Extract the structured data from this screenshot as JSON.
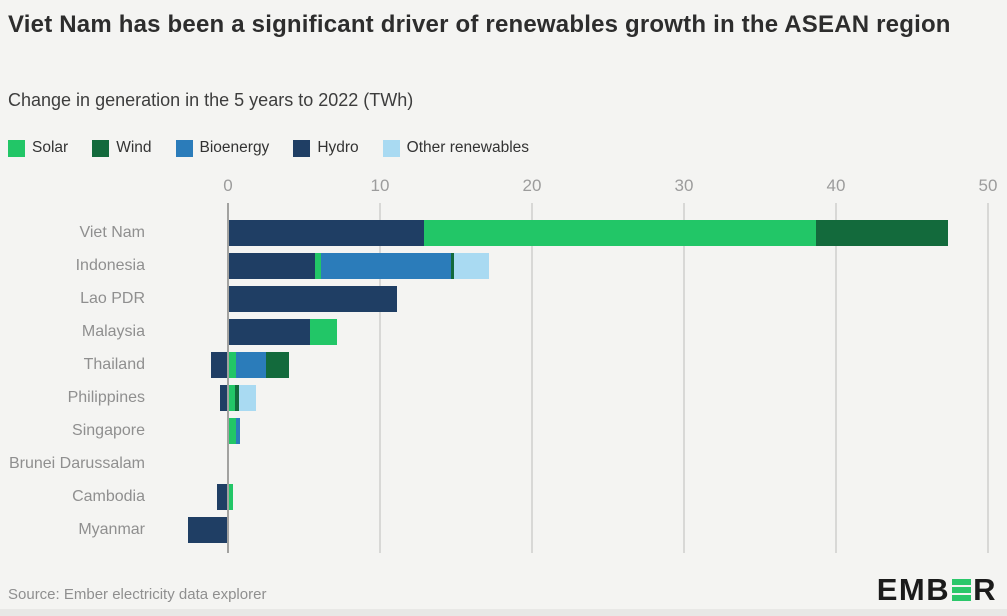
{
  "header": {
    "title": "Viet Nam has been a significant driver of renewables growth in the ASEAN region",
    "subtitle": "Change in generation in the 5 years to 2022 (TWh)"
  },
  "legend": [
    {
      "label": "Solar",
      "color": "#22c667"
    },
    {
      "label": "Wind",
      "color": "#136a3c"
    },
    {
      "label": "Bioenergy",
      "color": "#2b7cba"
    },
    {
      "label": "Hydro",
      "color": "#1f3e64"
    },
    {
      "label": "Other renewables",
      "color": "#a9daf2"
    }
  ],
  "footer": {
    "source": "Source: Ember electricity data explorer",
    "logo_text": "EMBER",
    "logo_color": "#1b1b1b",
    "logo_accent": "#2bc76a"
  },
  "chart_data": {
    "type": "bar",
    "orientation": "horizontal",
    "title": "Viet Nam has been a significant driver of renewables growth in the ASEAN region",
    "subtitle": "Change in generation in the 5 years to 2022 (TWh)",
    "unit": "TWh",
    "xlim": [
      -3,
      50
    ],
    "ticks": [
      0,
      10,
      20,
      30,
      40,
      50
    ],
    "grid": true,
    "legend_position": "top",
    "categories": [
      "Viet Nam",
      "Indonesia",
      "Lao PDR",
      "Malaysia",
      "Thailand",
      "Philippines",
      "Singapore",
      "Brunei Darussalam",
      "Cambodia",
      "Myanmar"
    ],
    "stack_order": [
      "Hydro",
      "Solar",
      "Bioenergy",
      "Wind",
      "Other renewables"
    ],
    "series": [
      {
        "name": "Solar",
        "color": "#22c667",
        "values": [
          25.8,
          0.4,
          0,
          1.8,
          0.5,
          0.45,
          0.5,
          0,
          0.35,
          0
        ]
      },
      {
        "name": "Wind",
        "color": "#136a3c",
        "values": [
          8.7,
          0.2,
          0,
          0,
          1.5,
          0.3,
          0,
          0,
          0,
          0
        ]
      },
      {
        "name": "Bioenergy",
        "color": "#2b7cba",
        "values": [
          0,
          8.6,
          0,
          0,
          2.0,
          0,
          0.3,
          0,
          0,
          0
        ]
      },
      {
        "name": "Hydro",
        "color": "#1f3e64",
        "values": [
          12.9,
          5.7,
          11.1,
          5.4,
          -1.1,
          -0.5,
          0,
          0,
          -0.7,
          -2.6
        ]
      },
      {
        "name": "Other renewables",
        "color": "#a9daf2",
        "values": [
          0,
          2.3,
          0,
          0,
          0,
          1.1,
          0,
          0,
          0,
          0
        ]
      }
    ],
    "colors": {
      "background": "#f4f4f2",
      "gridline": "#d8d8d6",
      "zeroline": "#a2a2a0",
      "tick_text": "#9c9c9c",
      "category_text": "#8f8f8f"
    }
  }
}
